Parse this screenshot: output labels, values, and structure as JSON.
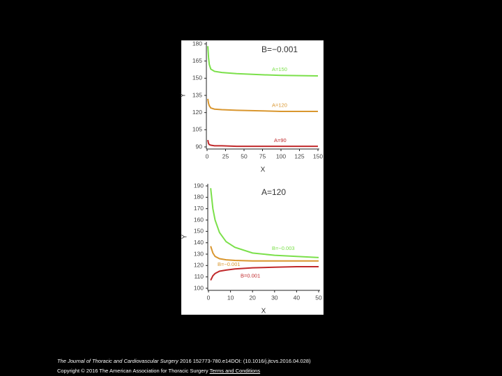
{
  "chart_data": [
    {
      "type": "line",
      "title": "B=−0.001",
      "x_label": "X",
      "y_label": "Y",
      "x": [
        1,
        2,
        3,
        5,
        10,
        20,
        40,
        75,
        100,
        150
      ],
      "xlim": [
        0,
        150
      ],
      "xticks": [
        0,
        25,
        50,
        75,
        100,
        125,
        150
      ],
      "ylim": [
        90,
        180
      ],
      "yticks": [
        90,
        105,
        120,
        135,
        150,
        165,
        180
      ],
      "series": [
        {
          "name": "A=150",
          "color": "#7be04a",
          "values": [
            178,
            168,
            162,
            158,
            156,
            155,
            154,
            153,
            152.5,
            152
          ]
        },
        {
          "name": "A=120",
          "color": "#d9962e",
          "values": [
            132,
            128,
            126,
            124,
            123,
            122.5,
            122,
            121.5,
            121,
            121
          ]
        },
        {
          "name": "A=90",
          "color": "#c0282a",
          "values": [
            96,
            93,
            92,
            91.5,
            91,
            91,
            90.5,
            90.5,
            90.5,
            90.5
          ]
        }
      ]
    },
    {
      "type": "line",
      "title": "A=120",
      "x_label": "X",
      "y_label": "Y",
      "x": [
        1,
        2,
        3,
        5,
        8,
        12,
        20,
        30,
        40,
        50
      ],
      "xlim": [
        0,
        50
      ],
      "xticks": [
        0,
        10,
        20,
        30,
        40,
        50
      ],
      "ylim": [
        100,
        190
      ],
      "yticks": [
        100,
        110,
        120,
        130,
        140,
        150,
        160,
        170,
        180,
        190
      ],
      "series": [
        {
          "name": "B=−0.003",
          "color": "#7be04a",
          "values": [
            188,
            170,
            160,
            149,
            141,
            136,
            131,
            129,
            128,
            127
          ]
        },
        {
          "name": "B=−0.001",
          "color": "#d9962e",
          "values": [
            137,
            131,
            128,
            126,
            125,
            124.5,
            124,
            124,
            124,
            124
          ]
        },
        {
          "name": "B=0.001",
          "color": "#c0282a",
          "values": [
            107,
            111,
            113,
            115,
            116,
            117,
            118,
            118.5,
            119,
            119
          ]
        }
      ]
    }
  ],
  "footer": {
    "journal": "The Journal of Thoracic and Cardiovascular Surgery",
    "citation": "2016 152773-780.e14DOI: (10.1016/j.jtcvs.2016.04.028)",
    "copyright": "Copyright © 2016 The American Association for Thoracic Surgery",
    "link": "Terms and Conditions"
  }
}
